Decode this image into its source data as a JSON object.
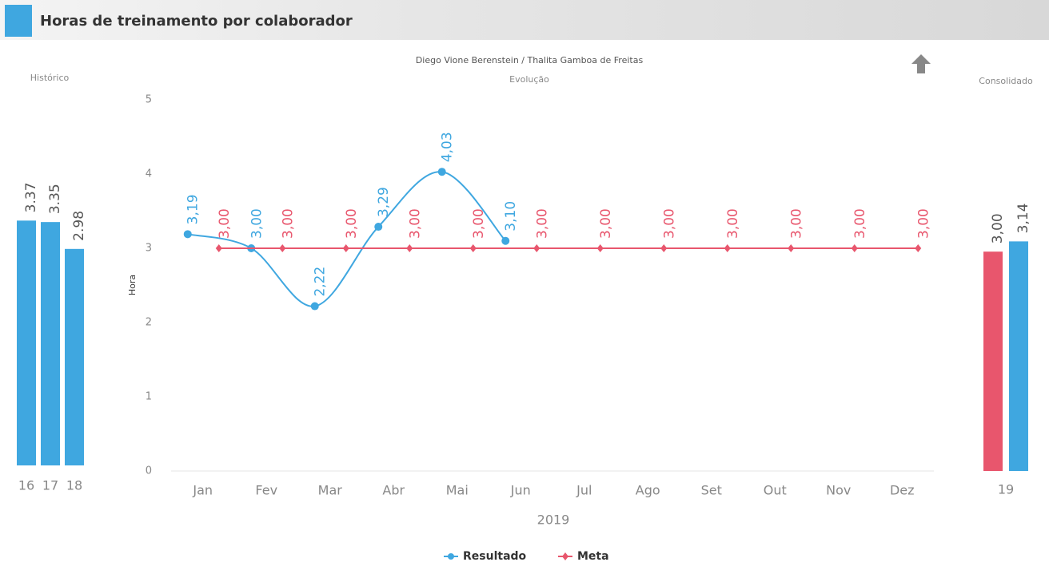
{
  "header": {
    "title": "Horas de treinamento por colaborador"
  },
  "chart_data": [
    {
      "type": "bar",
      "title": "Histórico",
      "categories": [
        "16",
        "17",
        "18"
      ],
      "values": [
        3.37,
        3.35,
        2.98
      ],
      "color": "#3fa7e0",
      "ylim": [
        0,
        5
      ]
    },
    {
      "type": "line",
      "title": "Diego Vione Berenstein / Thalita Gamboa de Freitas",
      "subtitle": "Evolução",
      "y_label": "Hora",
      "x_label": "2019",
      "categories": [
        "Jan",
        "Fev",
        "Mar",
        "Abr",
        "Mai",
        "Jun",
        "Jul",
        "Ago",
        "Set",
        "Out",
        "Nov",
        "Dez"
      ],
      "series": [
        {
          "name": "Resultado",
          "color": "#3fa7e0",
          "values": [
            3.19,
            3.0,
            2.22,
            3.29,
            4.03,
            3.1,
            null,
            null,
            null,
            null,
            null,
            null
          ],
          "value_labels": [
            "3,19",
            "3,00",
            "2,22",
            "3,29",
            "4,03",
            "3,10",
            null,
            null,
            null,
            null,
            null,
            null
          ]
        },
        {
          "name": "Meta",
          "color": "#e8566d",
          "values": [
            3.0,
            3.0,
            3.0,
            3.0,
            3.0,
            3.0,
            3.0,
            3.0,
            3.0,
            3.0,
            3.0,
            3.0
          ],
          "value_labels": [
            "3,00",
            "3,00",
            "3,00",
            "3,00",
            "3,00",
            "3,00",
            "3,00",
            "3,00",
            "3,00",
            "3,00",
            "3,00",
            "3,00"
          ]
        }
      ],
      "ylim": [
        0,
        5
      ],
      "yticks": [
        0,
        1,
        2,
        3,
        4,
        5
      ],
      "grid": false,
      "legend": "bottom"
    },
    {
      "type": "bar",
      "title": "Consolidado",
      "categories": [
        "19"
      ],
      "series": [
        {
          "color": "#e8566d",
          "values": [
            3.0
          ],
          "value_labels": [
            "3,00"
          ]
        },
        {
          "color": "#3fa7e0",
          "values": [
            3.14
          ],
          "value_labels": [
            "3,14"
          ]
        }
      ],
      "ylim": [
        0,
        5
      ]
    }
  ]
}
